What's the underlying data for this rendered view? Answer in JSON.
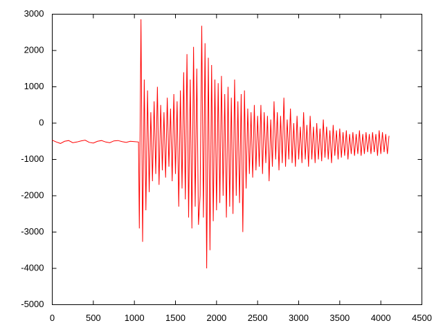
{
  "chart_data": {
    "type": "line",
    "x": [
      0,
      50,
      100,
      150,
      200,
      250,
      300,
      350,
      400,
      450,
      500,
      550,
      600,
      650,
      700,
      750,
      800,
      850,
      900,
      950,
      1000,
      1050,
      1060,
      1080,
      1100,
      1120,
      1140,
      1160,
      1180,
      1200,
      1220,
      1240,
      1260,
      1280,
      1300,
      1320,
      1340,
      1360,
      1380,
      1400,
      1420,
      1440,
      1460,
      1480,
      1500,
      1520,
      1540,
      1560,
      1580,
      1600,
      1620,
      1640,
      1660,
      1680,
      1700,
      1720,
      1740,
      1760,
      1780,
      1800,
      1820,
      1840,
      1860,
      1880,
      1900,
      1920,
      1940,
      1960,
      1980,
      2000,
      2020,
      2040,
      2060,
      2080,
      2100,
      2120,
      2140,
      2160,
      2180,
      2200,
      2220,
      2240,
      2260,
      2280,
      2300,
      2320,
      2340,
      2360,
      2380,
      2400,
      2420,
      2440,
      2460,
      2480,
      2500,
      2520,
      2540,
      2560,
      2580,
      2600,
      2620,
      2640,
      2660,
      2680,
      2700,
      2720,
      2740,
      2760,
      2780,
      2800,
      2820,
      2840,
      2860,
      2880,
      2900,
      2920,
      2940,
      2960,
      2980,
      3000,
      3020,
      3040,
      3060,
      3080,
      3100,
      3120,
      3140,
      3160,
      3180,
      3200,
      3220,
      3240,
      3260,
      3280,
      3300,
      3320,
      3340,
      3360,
      3380,
      3400,
      3420,
      3440,
      3460,
      3480,
      3500,
      3520,
      3540,
      3560,
      3580,
      3600,
      3620,
      3640,
      3660,
      3680,
      3700,
      3720,
      3740,
      3760,
      3780,
      3800,
      3820,
      3840,
      3860,
      3880,
      3900,
      3920,
      3940,
      3960,
      3980,
      4000,
      4020,
      4040,
      4060,
      4080,
      4100
    ],
    "series": [
      {
        "color": "#ff0000",
        "values": [
          -470,
          -520,
          -560,
          -500,
          -480,
          -540,
          -520,
          -490,
          -470,
          -530,
          -550,
          -500,
          -480,
          -520,
          -540,
          -490,
          -480,
          -510,
          -530,
          -500,
          -510,
          -520,
          -2900,
          2860,
          -3270,
          1200,
          -2400,
          900,
          -1900,
          300,
          -1600,
          600,
          -1400,
          1000,
          -1700,
          500,
          -1300,
          300,
          -1500,
          700,
          -1200,
          400,
          -1600,
          800,
          -1400,
          600,
          -2300,
          900,
          -1800,
          1400,
          -2100,
          1900,
          -2600,
          1200,
          -2900,
          2100,
          -2300,
          1500,
          -2800,
          -2000,
          2680,
          -2600,
          2200,
          -4000,
          1800,
          -3500,
          1600,
          -2700,
          1200,
          -2400,
          1100,
          -2200,
          1300,
          -2000,
          800,
          -2600,
          1000,
          -2300,
          700,
          -2500,
          1200,
          -2000,
          600,
          -2200,
          800,
          -3000,
          900,
          -1800,
          400,
          -1400,
          300,
          -1500,
          500,
          -1300,
          200,
          -1200,
          500,
          -1400,
          300,
          -1100,
          200,
          -1600,
          100,
          -1200,
          600,
          -1000,
          300,
          -1300,
          200,
          -1100,
          700,
          -1200,
          100,
          -1000,
          400,
          -1100,
          0,
          -1200,
          200,
          -1000,
          -100,
          -1100,
          300,
          -1000,
          -50,
          -1200,
          200,
          -1000,
          -100,
          -1100,
          0,
          -1000,
          -150,
          -1050,
          100,
          -950,
          -100,
          -1000,
          -200,
          -1100,
          -50,
          -900,
          -200,
          -1000,
          -150,
          -950,
          -250,
          -900,
          -200,
          -1000,
          -300,
          -850,
          -250,
          -900,
          -300,
          -850,
          -200,
          -900,
          -300,
          -850,
          -250,
          -800,
          -300,
          -850,
          -250,
          -800,
          -300,
          -900,
          -200,
          -850,
          -250,
          -800,
          -300,
          -850,
          -350
        ]
      }
    ],
    "xlim": [
      0,
      4500
    ],
    "xticks": [
      0,
      500,
      1000,
      1500,
      2000,
      2500,
      3000,
      3500,
      4000,
      4500
    ],
    "ylim": [
      -5000,
      3000
    ],
    "yticks": [
      -5000,
      -4000,
      -3000,
      -2000,
      -1000,
      0,
      1000,
      2000,
      3000
    ]
  }
}
